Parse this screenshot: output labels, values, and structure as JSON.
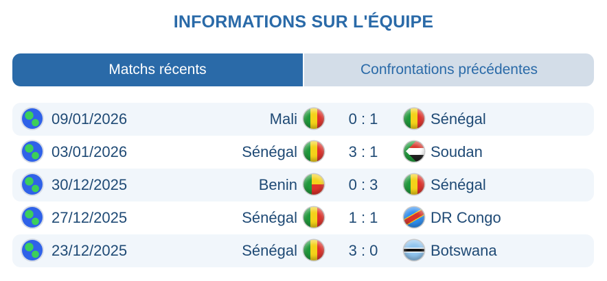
{
  "title": "INFORMATIONS SUR L'ÉQUIPE",
  "tabs": [
    {
      "label": "Matchs récents",
      "active": true
    },
    {
      "label": "Confrontations précédentes",
      "active": false
    }
  ],
  "colors": {
    "accent": "#2a6aa8",
    "text": "#1f4a75",
    "row_alt": "#f1f6fb",
    "tab_inactive": "#d3dde8"
  },
  "matches": [
    {
      "competition_icon": "globe-icon",
      "date": "09/01/2026",
      "home": "Mali",
      "home_flag": "mli",
      "score": "0 : 1",
      "away": "Sénégal",
      "away_flag": "sen"
    },
    {
      "competition_icon": "globe-icon",
      "date": "03/01/2026",
      "home": "Sénégal",
      "home_flag": "sen",
      "score": "3 : 1",
      "away": "Soudan",
      "away_flag": "sdn"
    },
    {
      "competition_icon": "globe-icon",
      "date": "30/12/2025",
      "home": "Benin",
      "home_flag": "ben",
      "score": "0 : 3",
      "away": "Sénégal",
      "away_flag": "sen"
    },
    {
      "competition_icon": "globe-icon",
      "date": "27/12/2025",
      "home": "Sénégal",
      "home_flag": "sen",
      "score": "1 : 1",
      "away": "DR Congo",
      "away_flag": "cod"
    },
    {
      "competition_icon": "globe-icon",
      "date": "23/12/2025",
      "home": "Sénégal",
      "home_flag": "sen",
      "score": "3 : 0",
      "away": "Botswana",
      "away_flag": "bwa"
    }
  ]
}
